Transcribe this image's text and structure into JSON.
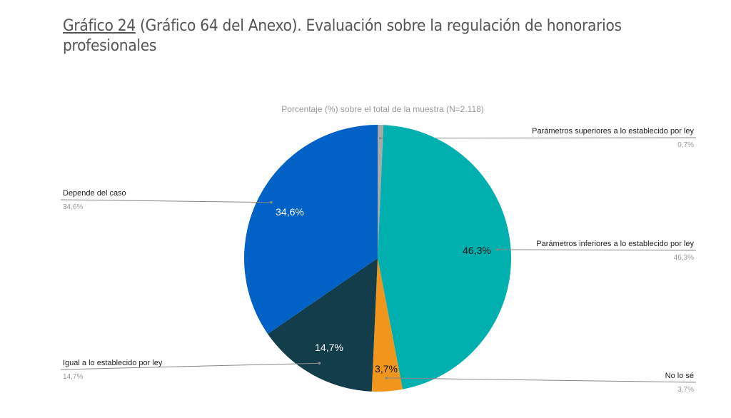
{
  "title_ref": "Gráfico 24",
  "title_rest": " (Gráfico 64 del Anexo). Evaluación sobre la regulación de honorarios profesionales",
  "chart_data": {
    "type": "pie",
    "title": "Porcentaje (%) sobre el total de la muestra (N=2.118)",
    "slices": [
      {
        "label": "Parámetros superiores a lo establecido por ley",
        "value": 0.7,
        "text": "0,7%",
        "color": "#a9a9a9"
      },
      {
        "label": "Parámetros inferiores a lo establecido por ley",
        "value": 46.3,
        "text": "46,3%",
        "color": "#00b0ae"
      },
      {
        "label": "No lo sé",
        "value": 3.7,
        "text": "3,7%",
        "color": "#f0961c"
      },
      {
        "label": "Igual a lo establecido por ley",
        "value": 14.7,
        "text": "14,7%",
        "color": "#133d4b"
      },
      {
        "label": "Depende del caso",
        "value": 34.6,
        "text": "34,6%",
        "color": "#0061c6"
      }
    ]
  }
}
